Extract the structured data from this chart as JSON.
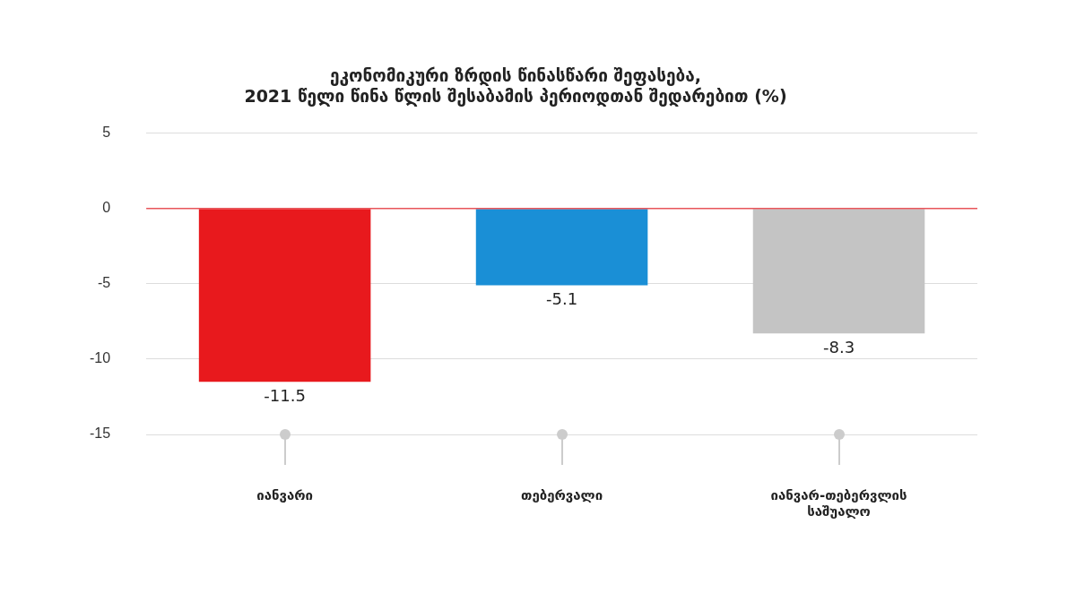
{
  "chart_data": {
    "type": "bar",
    "title": [
      "ეკონომიკური ზრდის წინასწარი შეფასება,",
      "2021 წელი წინა წლის შესაბამის პერიოდთან შედარებით (%)"
    ],
    "categories": [
      [
        "იანვარი"
      ],
      [
        "თებერვალი"
      ],
      [
        "იანვარ-თებერვლის",
        "საშუალო"
      ]
    ],
    "values": [
      -11.5,
      -5.1,
      -8.3
    ],
    "colors": [
      "#e8191d",
      "#1a8fd6",
      "#c4c4c4"
    ],
    "ylim": [
      -15,
      5
    ],
    "yticks": [
      -15,
      -10,
      -5,
      0,
      5
    ],
    "grid": "y",
    "data_labels": true,
    "legend": false,
    "ref_lines": [
      {
        "axis": "y",
        "value": 0,
        "color": "#e8555a"
      }
    ]
  }
}
